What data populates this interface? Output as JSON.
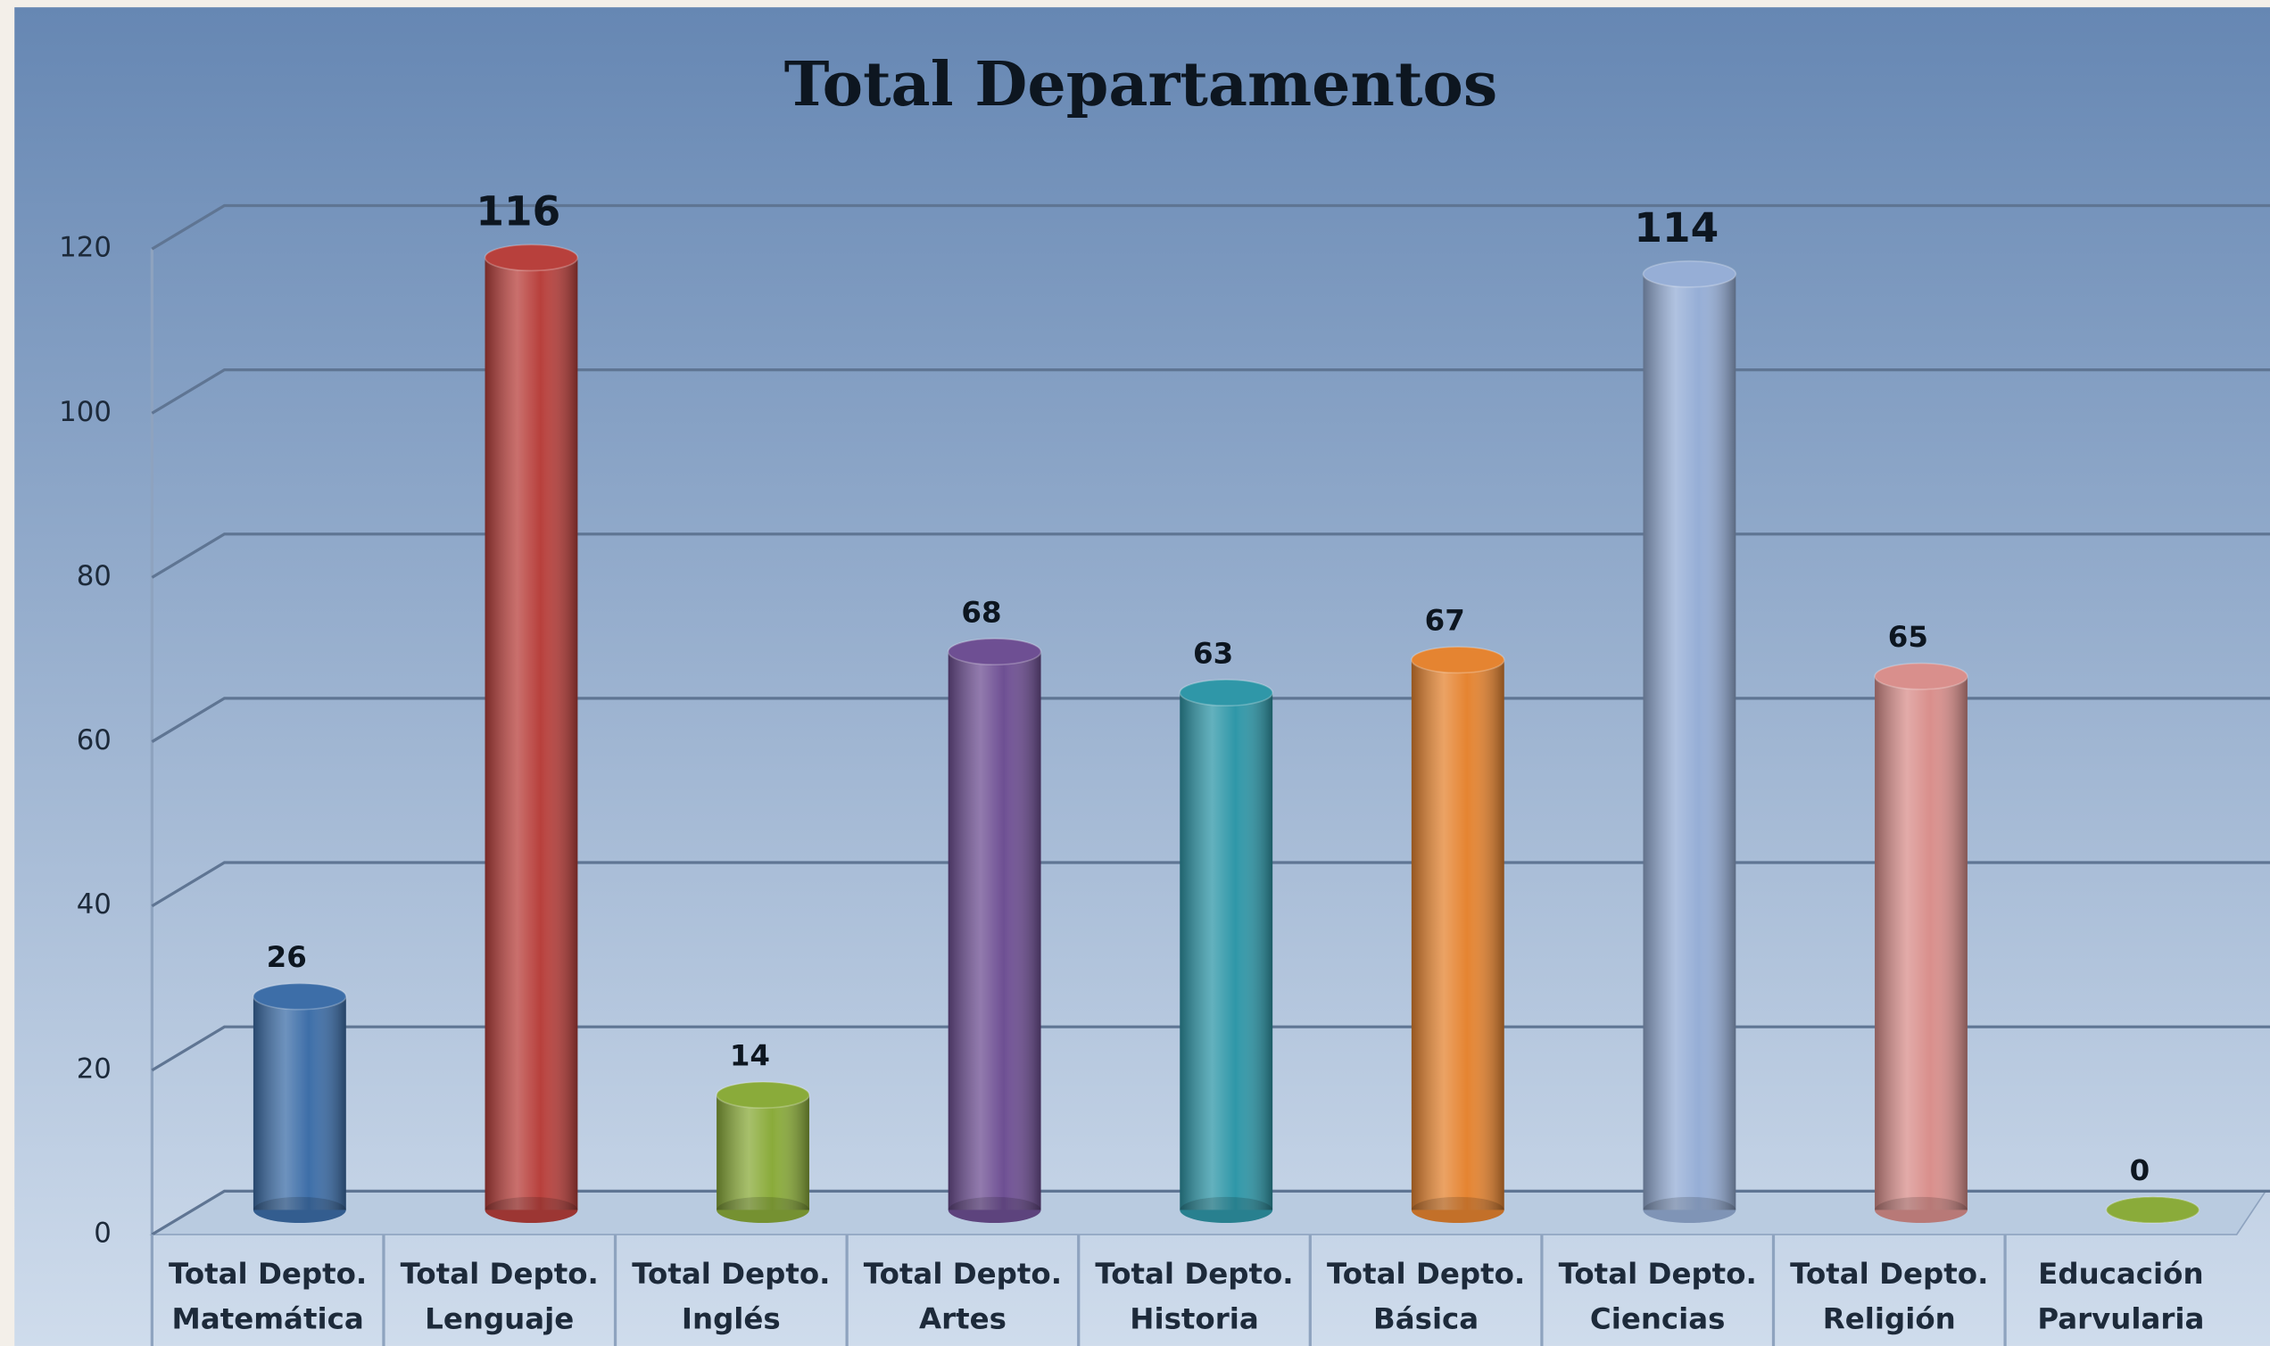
{
  "chart_data": {
    "type": "bar",
    "title": "Total Departamentos",
    "categories": [
      "Total Depto. Matemática",
      "Total Depto. Lenguaje",
      "Total Depto. Inglés",
      "Total Depto. Artes",
      "Total Depto. Historia",
      "Total Depto. Básica",
      "Total Depto. Ciencias",
      "Total Depto. Religión",
      "Educación Parvularia"
    ],
    "values": [
      26,
      116,
      14,
      68,
      63,
      67,
      114,
      65,
      0
    ],
    "colors": [
      "#3d6ea8",
      "#b8403c",
      "#8aab3a",
      "#6e4f93",
      "#2f97a8",
      "#e58431",
      "#96aed6",
      "#d98f8c",
      "#8aab3a"
    ],
    "ylim": [
      0,
      120
    ],
    "yticks": [
      0,
      20,
      40,
      60,
      80,
      100,
      120
    ],
    "grid": true
  }
}
